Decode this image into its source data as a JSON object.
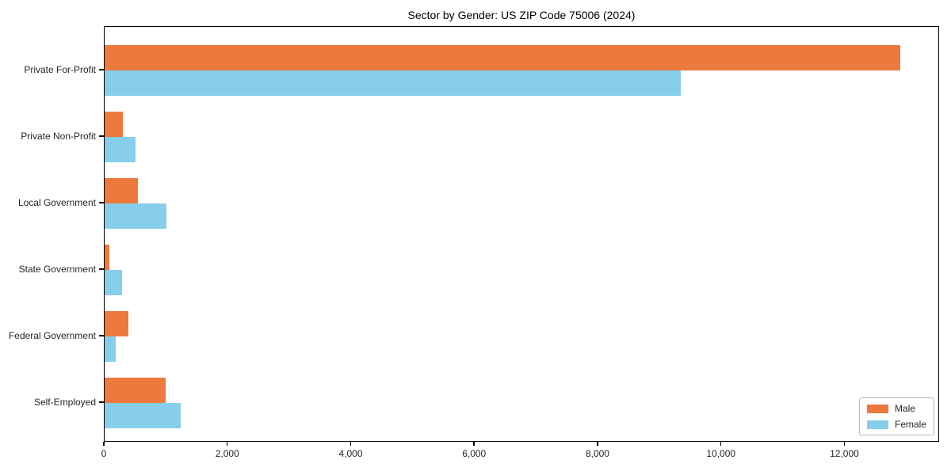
{
  "title": "Sector by Gender: US ZIP Code 75006 (2024)",
  "chart_data": {
    "type": "bar",
    "orientation": "horizontal",
    "title": "Sector by Gender: US ZIP Code 75006 (2024)",
    "xlabel": "",
    "ylabel": "",
    "categories": [
      "Private For-Profit",
      "Private Non-Profit",
      "Local Government",
      "State Government",
      "Federal Government",
      "Self-Employed"
    ],
    "series": [
      {
        "name": "Male",
        "color": "#EB7A3C",
        "values": [
          12890,
          300,
          540,
          80,
          390,
          990
        ]
      },
      {
        "name": "Female",
        "color": "#87CEEB",
        "values": [
          9330,
          500,
          1000,
          280,
          180,
          1230
        ]
      }
    ],
    "xlim": [
      0,
      13535
    ],
    "xticks": [
      0,
      2000,
      4000,
      6000,
      8000,
      10000,
      12000
    ],
    "xtick_labels": [
      "0",
      "2,000",
      "4,000",
      "6,000",
      "8,000",
      "10,000",
      "12,000"
    ],
    "grid": false,
    "legend_position": "lower right",
    "axis_color": "#000000",
    "background_color": "#ffffff"
  }
}
